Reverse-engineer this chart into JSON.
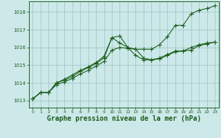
{
  "background_color": "#cce8e8",
  "grid_color": "#9fc8c8",
  "line_color": "#1a5c1a",
  "marker_color": "#1a5c1a",
  "xlabel": "Graphe pression niveau de la mer (hPa)",
  "xlabel_fontsize": 7,
  "ylabel_ticks": [
    1013,
    1014,
    1015,
    1016,
    1017,
    1018
  ],
  "xtick_labels": [
    "0",
    "1",
    "2",
    "3",
    "4",
    "5",
    "6",
    "7",
    "8",
    "9",
    "10",
    "11",
    "12",
    "13",
    "14",
    "15",
    "16",
    "17",
    "18",
    "19",
    "20",
    "21",
    "22",
    "23"
  ],
  "ylim": [
    1012.6,
    1018.6
  ],
  "xlim": [
    -0.5,
    23.5
  ],
  "series1_x": [
    0,
    1,
    2,
    3,
    4,
    5,
    6,
    7,
    8,
    9,
    10,
    11,
    12,
    13,
    14,
    15,
    16,
    17,
    18,
    19,
    20,
    21,
    22,
    23
  ],
  "series1_y": [
    1013.1,
    1013.45,
    1013.45,
    1013.9,
    1014.05,
    1014.25,
    1014.5,
    1014.7,
    1014.95,
    1015.2,
    1015.85,
    1016.0,
    1015.95,
    1015.9,
    1015.9,
    1015.9,
    1016.15,
    1016.6,
    1017.25,
    1017.25,
    1017.9,
    1018.1,
    1018.2,
    1018.35
  ],
  "series2_x": [
    0,
    1,
    2,
    3,
    4,
    5,
    6,
    7,
    8,
    9,
    10,
    11,
    12,
    13,
    14,
    15,
    16,
    17,
    18,
    19,
    20,
    21,
    22,
    23
  ],
  "series2_y": [
    1013.1,
    1013.45,
    1013.45,
    1014.0,
    1014.15,
    1014.35,
    1014.65,
    1014.85,
    1015.1,
    1015.4,
    1016.55,
    1016.65,
    1016.0,
    1015.9,
    1015.4,
    1015.3,
    1015.35,
    1015.55,
    1015.75,
    1015.8,
    1015.85,
    1016.1,
    1016.2,
    1016.3
  ],
  "series3_x": [
    0,
    1,
    2,
    3,
    4,
    5,
    6,
    7,
    8,
    9,
    10,
    11,
    12,
    13,
    14,
    15,
    16,
    17,
    18,
    19,
    20,
    21,
    22,
    23
  ],
  "series3_y": [
    1013.1,
    1013.45,
    1013.45,
    1014.0,
    1014.2,
    1014.45,
    1014.7,
    1014.9,
    1015.15,
    1015.5,
    1016.55,
    1016.25,
    1016.0,
    1015.55,
    1015.3,
    1015.3,
    1015.4,
    1015.6,
    1015.8,
    1015.8,
    1016.0,
    1016.15,
    1016.25,
    1016.3
  ]
}
